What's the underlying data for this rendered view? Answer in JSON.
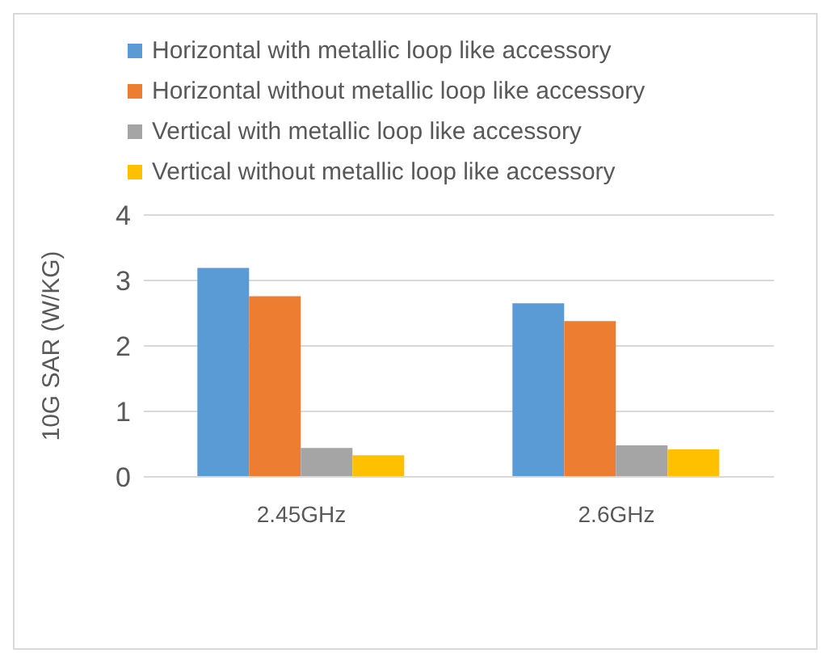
{
  "chart_data": {
    "type": "bar",
    "ylabel": "10G SAR (W/KG)",
    "categories": [
      "2.45GHz",
      "2.6GHz"
    ],
    "series": [
      {
        "name": "Horizontal with metallic loop like accessory",
        "color": "#5b9bd5",
        "values": [
          3.19,
          2.65
        ]
      },
      {
        "name": "Horizontal without metallic loop like accessory",
        "color": "#ed7d31",
        "values": [
          2.76,
          2.38
        ]
      },
      {
        "name": "Vertical with metallic loop like accessory",
        "color": "#a5a5a5",
        "values": [
          0.44,
          0.48
        ]
      },
      {
        "name": "Vertical without metallic loop like accessory",
        "color": "#ffc000",
        "values": [
          0.33,
          0.42
        ]
      }
    ],
    "ylim": [
      0,
      4
    ],
    "yticks": [
      0,
      1,
      2,
      3,
      4
    ],
    "grid": "y",
    "legend": "top"
  }
}
